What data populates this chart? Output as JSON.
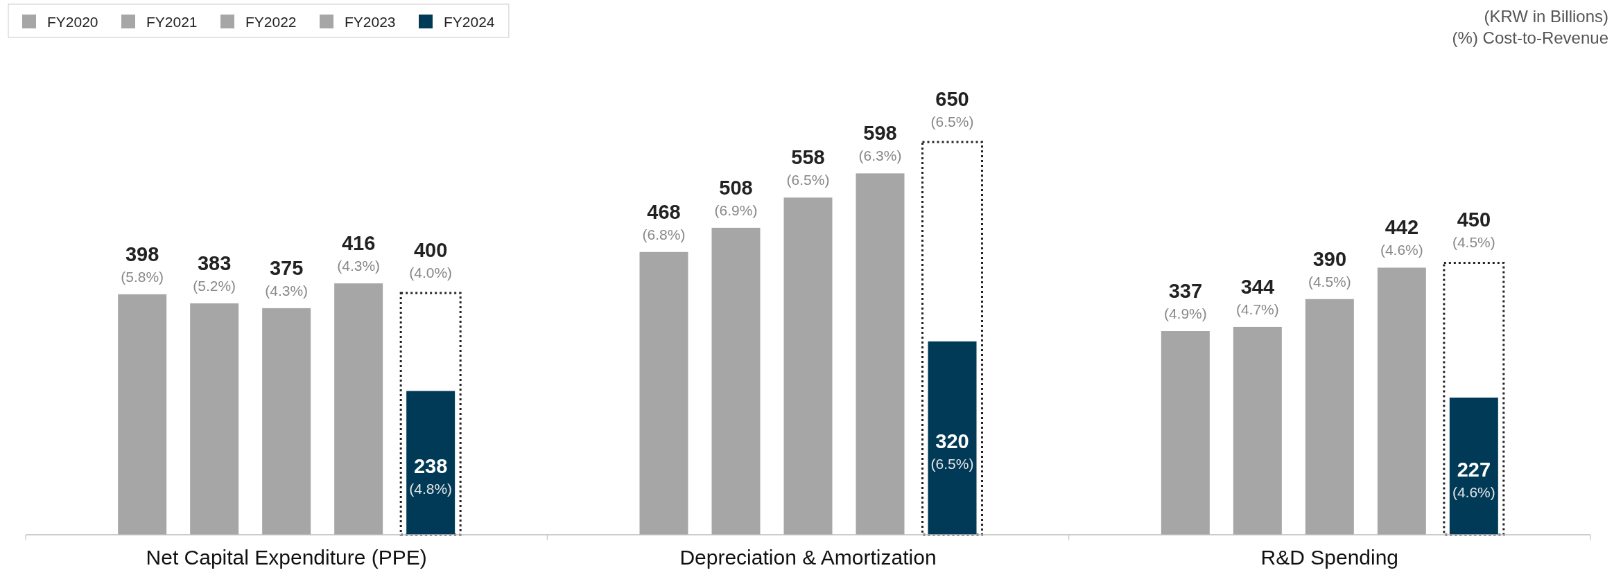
{
  "chart_data": {
    "type": "bar",
    "categories": [
      "Net Capital Expenditure (PPE)",
      "Depreciation & Amortization",
      "R&D Spending"
    ],
    "tick_labels": "x",
    "legend": "top left",
    "grid": false,
    "annotations": [
      "(KRW in Billions)",
      "(%) Cost-to-Revenue"
    ],
    "series": [
      {
        "name": "FY2020",
        "color": "#a6a6a6",
        "values": [
          398,
          468,
          337
        ],
        "value_labels": [
          "398\n(5.8%)",
          "468\n(6.8%)",
          "337\n(4.9%)"
        ]
      },
      {
        "name": "FY2021",
        "color": "#a6a6a6",
        "values": [
          383,
          508,
          344
        ],
        "value_labels": [
          "383\n(5.2%)",
          "508\n(6.9%)",
          "344\n(4.7%)"
        ]
      },
      {
        "name": "FY2022",
        "color": "#a6a6a6",
        "values": [
          375,
          558,
          390
        ],
        "value_labels": [
          "375\n(4.3%)",
          "558\n(6.5%)",
          "390\n(4.5%)"
        ]
      },
      {
        "name": "FY2023",
        "color": "#a6a6a6",
        "values": [
          416,
          598,
          442
        ],
        "value_labels": [
          "416\n(4.3%)",
          "598\n(6.3%)",
          "442\n(4.6%)"
        ]
      },
      {
        "name": "FY2024",
        "color": "#003a57",
        "values": [
          238,
          320,
          227
        ],
        "value_labels": [
          "238\n(4.8%)",
          "320\n(6.5%)",
          "227\n(4.6%)"
        ]
      },
      {
        "color": "#ffffff",
        "line_style": "dotted",
        "values": [
          400,
          650,
          450
        ],
        "value_labels": [
          "400\n(4.0%)",
          "650\n(6.5%)",
          "450\n(4.5%)"
        ]
      }
    ]
  }
}
